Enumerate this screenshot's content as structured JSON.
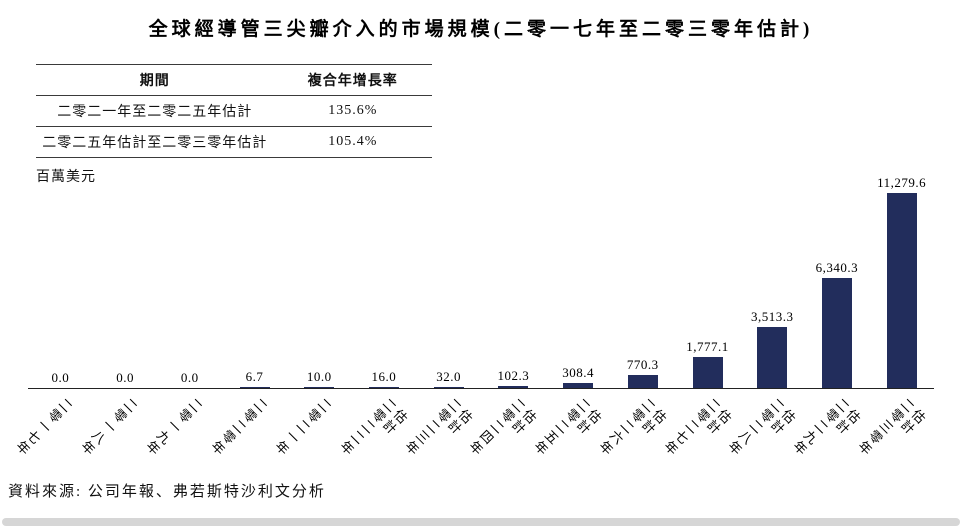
{
  "title": "全球經導管三尖瓣介入的市場規模(二零一七年至二零三零年估計)",
  "table": {
    "headers": [
      "期間",
      "複合年增長率"
    ],
    "rows": [
      {
        "period": "二零二一年至二零二五年估計",
        "cagr": "135.6%"
      },
      {
        "period": "二零二五年估計至二零三零年估計",
        "cagr": "105.4%"
      }
    ]
  },
  "unit_label": "百萬美元",
  "source": "資料來源: 公司年報、弗若斯特沙利文分析",
  "chart_data": {
    "type": "bar",
    "title": "全球經導管三尖瓣介入的市場規模(二零一七年至二零三零年估計)",
    "ylabel": "百萬美元",
    "categories": [
      "二零一七年",
      "二零一八年",
      "二零一九年",
      "二零二零年",
      "二零二一年",
      "二零二二年估計",
      "二零二三年估計",
      "二零二四年估計",
      "二零二五年估計",
      "二零二六年估計",
      "二零二七年估計",
      "二零二八年估計",
      "二零二九年估計",
      "二零三零年估計"
    ],
    "values": [
      0.0,
      0.0,
      0.0,
      6.7,
      10.0,
      16.0,
      32.0,
      102.3,
      308.4,
      770.3,
      1777.1,
      3513.3,
      6340.3,
      11279.6
    ],
    "value_labels": [
      "0.0",
      "0.0",
      "0.0",
      "6.7",
      "10.0",
      "16.0",
      "32.0",
      "102.3",
      "308.4",
      "770.3",
      "1,777.1",
      "3,513.3",
      "6,340.3",
      "11,279.6"
    ],
    "ylim": [
      0,
      11279.6
    ],
    "bar_color": "#222d5c",
    "grid": false,
    "legend": false
  }
}
